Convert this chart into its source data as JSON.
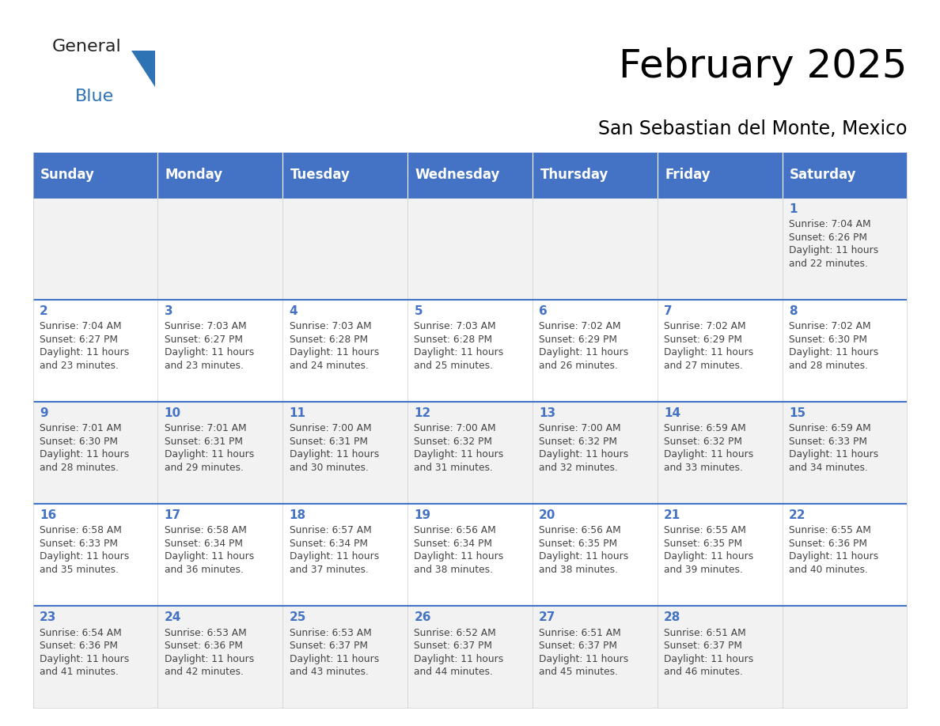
{
  "title": "February 2025",
  "subtitle": "San Sebastian del Monte, Mexico",
  "header_color": "#4472C4",
  "header_text_color": "#FFFFFF",
  "cell_bg_even": "#F2F2F2",
  "cell_bg_odd": "#FFFFFF",
  "day_headers": [
    "Sunday",
    "Monday",
    "Tuesday",
    "Wednesday",
    "Thursday",
    "Friday",
    "Saturday"
  ],
  "weeks": [
    [
      {
        "day": null,
        "info": null
      },
      {
        "day": null,
        "info": null
      },
      {
        "day": null,
        "info": null
      },
      {
        "day": null,
        "info": null
      },
      {
        "day": null,
        "info": null
      },
      {
        "day": null,
        "info": null
      },
      {
        "day": 1,
        "info": "Sunrise: 7:04 AM\nSunset: 6:26 PM\nDaylight: 11 hours\nand 22 minutes."
      }
    ],
    [
      {
        "day": 2,
        "info": "Sunrise: 7:04 AM\nSunset: 6:27 PM\nDaylight: 11 hours\nand 23 minutes."
      },
      {
        "day": 3,
        "info": "Sunrise: 7:03 AM\nSunset: 6:27 PM\nDaylight: 11 hours\nand 23 minutes."
      },
      {
        "day": 4,
        "info": "Sunrise: 7:03 AM\nSunset: 6:28 PM\nDaylight: 11 hours\nand 24 minutes."
      },
      {
        "day": 5,
        "info": "Sunrise: 7:03 AM\nSunset: 6:28 PM\nDaylight: 11 hours\nand 25 minutes."
      },
      {
        "day": 6,
        "info": "Sunrise: 7:02 AM\nSunset: 6:29 PM\nDaylight: 11 hours\nand 26 minutes."
      },
      {
        "day": 7,
        "info": "Sunrise: 7:02 AM\nSunset: 6:29 PM\nDaylight: 11 hours\nand 27 minutes."
      },
      {
        "day": 8,
        "info": "Sunrise: 7:02 AM\nSunset: 6:30 PM\nDaylight: 11 hours\nand 28 minutes."
      }
    ],
    [
      {
        "day": 9,
        "info": "Sunrise: 7:01 AM\nSunset: 6:30 PM\nDaylight: 11 hours\nand 28 minutes."
      },
      {
        "day": 10,
        "info": "Sunrise: 7:01 AM\nSunset: 6:31 PM\nDaylight: 11 hours\nand 29 minutes."
      },
      {
        "day": 11,
        "info": "Sunrise: 7:00 AM\nSunset: 6:31 PM\nDaylight: 11 hours\nand 30 minutes."
      },
      {
        "day": 12,
        "info": "Sunrise: 7:00 AM\nSunset: 6:32 PM\nDaylight: 11 hours\nand 31 minutes."
      },
      {
        "day": 13,
        "info": "Sunrise: 7:00 AM\nSunset: 6:32 PM\nDaylight: 11 hours\nand 32 minutes."
      },
      {
        "day": 14,
        "info": "Sunrise: 6:59 AM\nSunset: 6:32 PM\nDaylight: 11 hours\nand 33 minutes."
      },
      {
        "day": 15,
        "info": "Sunrise: 6:59 AM\nSunset: 6:33 PM\nDaylight: 11 hours\nand 34 minutes."
      }
    ],
    [
      {
        "day": 16,
        "info": "Sunrise: 6:58 AM\nSunset: 6:33 PM\nDaylight: 11 hours\nand 35 minutes."
      },
      {
        "day": 17,
        "info": "Sunrise: 6:58 AM\nSunset: 6:34 PM\nDaylight: 11 hours\nand 36 minutes."
      },
      {
        "day": 18,
        "info": "Sunrise: 6:57 AM\nSunset: 6:34 PM\nDaylight: 11 hours\nand 37 minutes."
      },
      {
        "day": 19,
        "info": "Sunrise: 6:56 AM\nSunset: 6:34 PM\nDaylight: 11 hours\nand 38 minutes."
      },
      {
        "day": 20,
        "info": "Sunrise: 6:56 AM\nSunset: 6:35 PM\nDaylight: 11 hours\nand 38 minutes."
      },
      {
        "day": 21,
        "info": "Sunrise: 6:55 AM\nSunset: 6:35 PM\nDaylight: 11 hours\nand 39 minutes."
      },
      {
        "day": 22,
        "info": "Sunrise: 6:55 AM\nSunset: 6:36 PM\nDaylight: 11 hours\nand 40 minutes."
      }
    ],
    [
      {
        "day": 23,
        "info": "Sunrise: 6:54 AM\nSunset: 6:36 PM\nDaylight: 11 hours\nand 41 minutes."
      },
      {
        "day": 24,
        "info": "Sunrise: 6:53 AM\nSunset: 6:36 PM\nDaylight: 11 hours\nand 42 minutes."
      },
      {
        "day": 25,
        "info": "Sunrise: 6:53 AM\nSunset: 6:37 PM\nDaylight: 11 hours\nand 43 minutes."
      },
      {
        "day": 26,
        "info": "Sunrise: 6:52 AM\nSunset: 6:37 PM\nDaylight: 11 hours\nand 44 minutes."
      },
      {
        "day": 27,
        "info": "Sunrise: 6:51 AM\nSunset: 6:37 PM\nDaylight: 11 hours\nand 45 minutes."
      },
      {
        "day": 28,
        "info": "Sunrise: 6:51 AM\nSunset: 6:37 PM\nDaylight: 11 hours\nand 46 minutes."
      },
      {
        "day": null,
        "info": null
      }
    ]
  ],
  "header_color_line": "#4472C4",
  "title_font_size": 36,
  "subtitle_font_size": 17,
  "header_font_size": 12,
  "day_num_font_size": 11,
  "info_font_size": 8.8,
  "logo_general_size": 16,
  "logo_blue_size": 16,
  "logo_general_color": "#222222",
  "logo_blue_color": "#2E74B5",
  "logo_triangle_color": "#2E74B5"
}
